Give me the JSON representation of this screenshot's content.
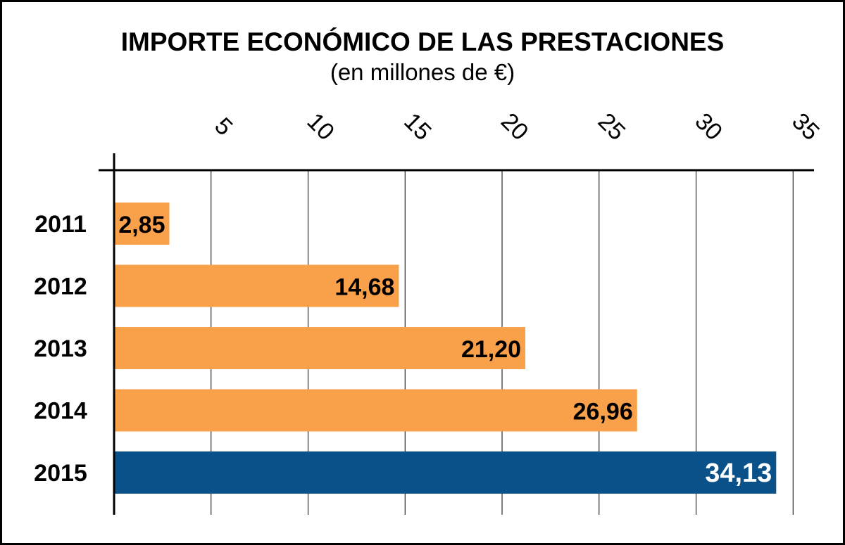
{
  "chart_data": {
    "type": "bar",
    "orientation": "horizontal",
    "title": "IMPORTE ECONÓMICO DE LAS PRESTACIONES",
    "subtitle": "(en millones de €)",
    "xlabel": "",
    "ylabel": "",
    "categories": [
      "2011",
      "2012",
      "2013",
      "2014",
      "2015"
    ],
    "values": [
      2.85,
      14.68,
      21.2,
      26.96,
      34.13
    ],
    "value_labels": [
      "2,85",
      "14,68",
      "21,20",
      "26,96",
      "34,13"
    ],
    "x_ticks": [
      5,
      10,
      15,
      20,
      25,
      30,
      35
    ],
    "x_tick_labels": [
      "5",
      "10",
      "15",
      "20",
      "25",
      "30",
      "35"
    ],
    "xlim": [
      0,
      35.5
    ],
    "x_axis_position": "top",
    "grid": true,
    "legend": "none",
    "colors": {
      "bar": "#F9A04A",
      "highlight_bar": "#0A5189",
      "label": "#000000",
      "highlight_label": "#FFFFFF",
      "grid": "#000000"
    },
    "highlight_index": 4
  }
}
